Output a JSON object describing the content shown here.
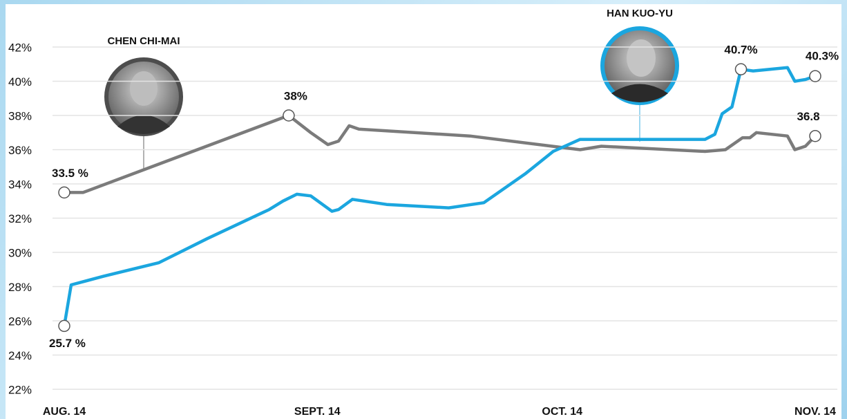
{
  "chart_data": {
    "type": "line",
    "xlim": [
      0,
      92
    ],
    "xticks": [
      {
        "value": 0,
        "label": "AUG. 14"
      },
      {
        "value": 31,
        "label": "SEPT. 14"
      },
      {
        "value": 61,
        "label": "OCT. 14"
      },
      {
        "value": 92,
        "label": "NOV. 14"
      }
    ],
    "ylim": [
      22,
      42
    ],
    "yticks": [
      {
        "value": 22,
        "label": "22%"
      },
      {
        "value": 24,
        "label": "24%"
      },
      {
        "value": 26,
        "label": "26%"
      },
      {
        "value": 28,
        "label": "28%"
      },
      {
        "value": 30,
        "label": "30%"
      },
      {
        "value": 32,
        "label": "32%"
      },
      {
        "value": 34,
        "label": "34%"
      },
      {
        "value": 36,
        "label": "36%"
      },
      {
        "value": 38,
        "label": "38%"
      },
      {
        "value": 40,
        "label": "40%"
      },
      {
        "value": 42,
        "label": "42%"
      }
    ],
    "grid": true,
    "series": [
      {
        "name": "CHEN CHI-MAI",
        "color": "#7b7b7b",
        "x": [
          0,
          2.3,
          27.5,
          30.2,
          32.3,
          33.6,
          34.9,
          36.1,
          49.7,
          63.2,
          65.8,
          78.5,
          81.0,
          83.1,
          84.0,
          84.8,
          88.6,
          89.5,
          90.8,
          92
        ],
        "values": [
          33.5,
          33.5,
          38.0,
          37.0,
          36.3,
          36.5,
          37.4,
          37.2,
          36.8,
          36.0,
          36.2,
          35.9,
          36.0,
          36.7,
          36.7,
          37.0,
          36.8,
          36.0,
          36.2,
          36.8
        ],
        "value_labels": [
          "33.5 %",
          null,
          "38%",
          null,
          null,
          null,
          null,
          null,
          null,
          null,
          null,
          null,
          null,
          null,
          null,
          null,
          null,
          null,
          null,
          "36.8"
        ]
      },
      {
        "name": "HAN KUO-YU",
        "color": "#1ba6df",
        "x": [
          0,
          0.85,
          4.8,
          11.6,
          17.5,
          25.1,
          26.8,
          28.5,
          30.2,
          32.8,
          33.6,
          35.3,
          39.5,
          47.1,
          51.4,
          56.5,
          59.9,
          63.2,
          78.5,
          79.7,
          80.6,
          81.8,
          82.9,
          84.4,
          88.6,
          89.5,
          90.8,
          92
        ],
        "values": [
          25.7,
          28.1,
          28.6,
          29.4,
          30.8,
          32.5,
          33.0,
          33.4,
          33.3,
          32.4,
          32.5,
          33.1,
          32.8,
          32.6,
          32.9,
          34.6,
          35.9,
          36.6,
          36.6,
          36.9,
          38.1,
          38.5,
          40.7,
          40.6,
          40.8,
          40.0,
          40.1,
          40.3
        ],
        "value_labels": [
          "25.7 %",
          null,
          null,
          null,
          null,
          null,
          null,
          null,
          null,
          null,
          null,
          null,
          null,
          null,
          null,
          null,
          null,
          null,
          null,
          null,
          null,
          null,
          "40.7%",
          null,
          null,
          null,
          null,
          "40.3%"
        ]
      }
    ]
  }
}
